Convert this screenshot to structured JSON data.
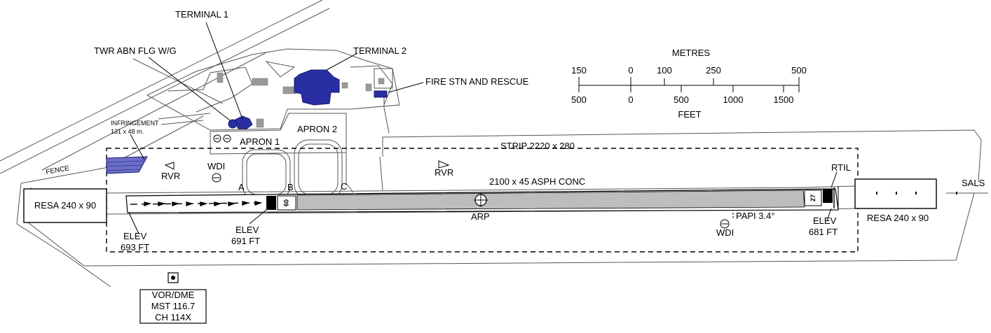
{
  "labels": {
    "terminal1": "TERMINAL 1",
    "terminal2": "TERMINAL 2",
    "twr": "TWR ABN FLG W/G",
    "fire": "FIRE STN AND RESCUE",
    "infringement": "INFRINGEMENT",
    "infringement_size": "131 x 48 m.",
    "fence": "FENCE",
    "apron1": "APRON 1",
    "apron2": "APRON 2",
    "strip": "STRIP 2220 x 280",
    "runway": "2100 x 45 ASPH CONC",
    "rvr_left": "RVR",
    "rvr_mid": "RVR",
    "wdi_left": "WDI",
    "wdi_right": "WDI",
    "twy_a": "A",
    "twy_b": "B",
    "twy_c": "C",
    "rtil": "RTIL",
    "sals": "SALS",
    "arp": "ARP",
    "papi": "PAPI 3.4°",
    "resa_left": "RESA 240 x 90",
    "resa_right": "RESA 240 x 90",
    "elev_693_1": "ELEV",
    "elev_693_2": "693 FT",
    "elev_691_1": "ELEV",
    "elev_691_2": "691 FT",
    "elev_681_1": "ELEV",
    "elev_681_2": "681 FT",
    "rwy_left": "09",
    "rwy_right": "27",
    "vor_title": "VOR/DME",
    "vor_freq": "MST 116.7",
    "vor_ch": "CH 114X"
  },
  "scale": {
    "metres_title": "METRES",
    "feet_title": "FEET",
    "metres_ticks": [
      "150",
      "0",
      "100",
      "250",
      "500"
    ],
    "feet_ticks": [
      "500",
      "0",
      "500",
      "1000",
      "1500"
    ]
  },
  "colors": {
    "building_blue": "#2a2ea3",
    "building_grey": "#9a9a9a",
    "runway_fill": "#bdbdbd"
  }
}
